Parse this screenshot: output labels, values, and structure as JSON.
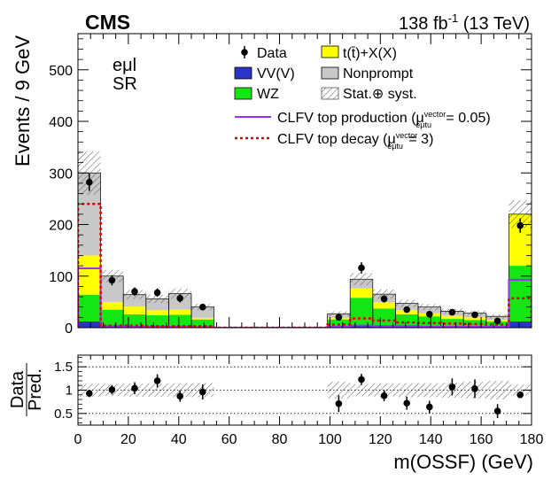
{
  "header": {
    "experiment": "CMS",
    "lumi": "138 fb",
    "lumi_sup": "-1",
    "energy": " (13 TeV)"
  },
  "labels": {
    "channel": "eμl",
    "region": "SR"
  },
  "colors": {
    "vv": "#2a35c8",
    "wz": "#14e614",
    "ttx": "#ffff00",
    "nonprompt": "#c8c8c8",
    "prod": "#a02cfa",
    "decay": "#e00000",
    "band": "#555555"
  },
  "legend": {
    "data": "Data",
    "ttx": "t(t̄)+X(X)",
    "vv": "VV(V)",
    "nonprompt": "Nonprompt",
    "wz": "WZ",
    "unc": "Stat.⊕ syst.",
    "prod_prefix": "CLFV top production (μ",
    "prod_sup": "vector",
    "prod_sub": "eμtu",
    "prod_suffix": " = 0.05)",
    "decay_prefix": "CLFV top decay (μ",
    "decay_sup": "vector",
    "decay_sub": "eμtu",
    "decay_suffix": " = 3)"
  },
  "chart_data": [
    {
      "type": "stacked-histogram",
      "xlabel": "m(OSSF) (GeV)",
      "ylabel": "Events / 9 GeV",
      "xlim": [
        0,
        180
      ],
      "ylim": [
        0,
        570
      ],
      "yticks": [
        0,
        100,
        200,
        300,
        400,
        500
      ],
      "bin_edges": [
        0,
        9,
        18,
        27,
        36,
        45,
        54,
        63,
        72,
        81,
        90,
        99,
        108,
        117,
        126,
        135,
        144,
        153,
        162,
        171,
        180
      ],
      "stack": [
        {
          "name": "VV(V)",
          "values": [
            12,
            3,
            2,
            2,
            2,
            1,
            0,
            0,
            0,
            0,
            0,
            3,
            4,
            3,
            2,
            2,
            2,
            2,
            2,
            12
          ]
        },
        {
          "name": "WZ",
          "values": [
            52,
            32,
            24,
            22,
            23,
            15,
            0,
            0,
            0,
            0,
            0,
            13,
            54,
            34,
            24,
            20,
            15,
            13,
            10,
            108
          ]
        },
        {
          "name": "t(t̄)+X(X)",
          "values": [
            76,
            15,
            15,
            10,
            10,
            3,
            0,
            0,
            0,
            0,
            0,
            3,
            18,
            12,
            8,
            6,
            6,
            5,
            3,
            100
          ]
        },
        {
          "name": "Nonprompt",
          "values": [
            160,
            50,
            23,
            22,
            31,
            21,
            0,
            0,
            0,
            0,
            0,
            8,
            18,
            16,
            13,
            12,
            9,
            8,
            7,
            0
          ]
        }
      ],
      "stack_total": [
        300,
        100,
        64,
        56,
        66,
        40,
        0,
        0,
        0,
        0,
        0,
        27,
        94,
        65,
        47,
        40,
        32,
        28,
        22,
        220
      ],
      "uncertainty": [
        42,
        12,
        9,
        8,
        10,
        6,
        0,
        0,
        0,
        0,
        0,
        5,
        12,
        9,
        7,
        6,
        5,
        5,
        4,
        27
      ],
      "data": {
        "name": "Data",
        "x": [
          4.5,
          13.5,
          22.5,
          31.5,
          40.5,
          49.5,
          103.5,
          112.5,
          121.5,
          130.5,
          139.5,
          148.5,
          157.5,
          166.5,
          175.5
        ],
        "y": [
          282,
          92,
          70,
          68,
          57,
          40,
          20,
          116,
          56,
          35,
          26,
          30,
          25,
          13,
          198
        ],
        "err": [
          17,
          10,
          8,
          8,
          8,
          6,
          5,
          11,
          7,
          6,
          5,
          6,
          5,
          4,
          14
        ]
      },
      "signals": [
        {
          "name": "CLFV top production (μ = 0.05)",
          "style": "solid",
          "values": [
            115,
            3,
            2,
            2,
            2,
            1,
            0,
            0,
            0,
            0,
            0,
            2,
            4,
            3,
            3,
            2,
            2,
            2,
            2,
            93
          ]
        },
        {
          "name": "CLFV top decay (μ = 3)",
          "style": "dotted",
          "values": [
            240,
            4,
            4,
            3,
            3,
            3,
            0,
            0,
            0,
            0,
            0,
            6,
            18,
            14,
            10,
            9,
            8,
            7,
            6,
            57
          ]
        }
      ]
    },
    {
      "type": "ratio",
      "xlabel": "m(OSSF) (GeV)",
      "ylabel_num": "Data",
      "ylabel_den": "Pred.",
      "xlim": [
        0,
        180
      ],
      "ylim": [
        0.25,
        1.75
      ],
      "yticks": [
        0.5,
        1,
        1.5
      ],
      "ytick_labels": [
        "0.5",
        "1",
        "1.5"
      ],
      "xticks": [
        0,
        20,
        40,
        60,
        80,
        100,
        120,
        140,
        160,
        180
      ],
      "xtick_labels": [
        "0",
        "20",
        "40",
        "60",
        "80",
        "100",
        "120",
        "140",
        "160",
        "180"
      ],
      "points": {
        "x": [
          4.5,
          13.5,
          22.5,
          31.5,
          40.5,
          49.5,
          103.5,
          112.5,
          121.5,
          130.5,
          139.5,
          148.5,
          157.5,
          166.5,
          175.5
        ],
        "y": [
          0.93,
          1.01,
          1.04,
          1.2,
          0.87,
          0.96,
          0.71,
          1.23,
          0.88,
          0.72,
          0.64,
          1.07,
          1.03,
          0.55,
          0.9
        ],
        "err": [
          0.08,
          0.1,
          0.13,
          0.14,
          0.12,
          0.16,
          0.18,
          0.12,
          0.12,
          0.14,
          0.13,
          0.18,
          0.2,
          0.15,
          0.07
        ]
      },
      "band": [
        0.14,
        0.12,
        0.14,
        0.14,
        0.15,
        0.15,
        0,
        0,
        0,
        0,
        0,
        0.18,
        0.13,
        0.14,
        0.15,
        0.15,
        0.16,
        0.18,
        0.2,
        0.12
      ]
    }
  ]
}
